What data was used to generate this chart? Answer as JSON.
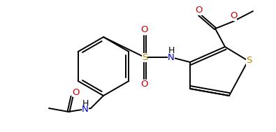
{
  "bg_color": "#ffffff",
  "lc": "#000000",
  "lc_s": "#b8860b",
  "lc_o": "#cc0000",
  "lc_n": "#0000cc",
  "lw": 1.4,
  "figsize": [
    3.95,
    1.89
  ],
  "dpi": 100,
  "xlim": [
    0,
    395
  ],
  "ylim": [
    0,
    189
  ]
}
